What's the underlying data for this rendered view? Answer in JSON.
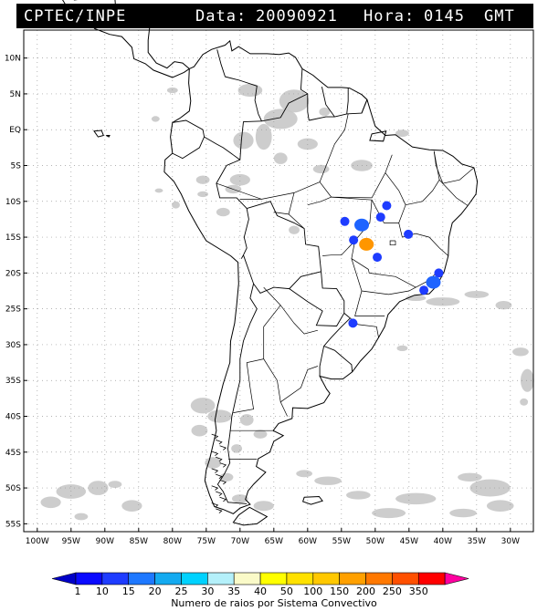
{
  "header": {
    "source": "CPTEC/INPE",
    "date_label": "Data:",
    "date_value": "20090921",
    "time_label": "Hora:",
    "time_value": "0145",
    "timezone": "GMT"
  },
  "map": {
    "lat_labels": [
      "10N",
      "5N",
      "EQ",
      "5S",
      "10S",
      "15S",
      "20S",
      "25S",
      "30S",
      "35S",
      "40S",
      "45S",
      "50S",
      "55S"
    ],
    "lon_labels": [
      "100W",
      "95W",
      "90W",
      "85W",
      "80W",
      "75W",
      "70W",
      "65W",
      "60W",
      "55W",
      "50W",
      "45W",
      "40W",
      "35W",
      "30W"
    ],
    "cloud_color": "#c8c8c8",
    "coast_color": "#000000",
    "grid_color": "#999999",
    "convective_systems": [
      {
        "lon": -54.5,
        "lat": -12.8,
        "color": "#1e3cff",
        "category": "1-10"
      },
      {
        "lon": -52.0,
        "lat": -13.3,
        "color": "#1e64ff",
        "category": "10-15"
      },
      {
        "lon": -49.2,
        "lat": -12.2,
        "color": "#1e3cff",
        "category": "1-10"
      },
      {
        "lon": -48.3,
        "lat": -10.6,
        "color": "#1e3cff",
        "category": "1-10"
      },
      {
        "lon": -53.2,
        "lat": -15.4,
        "color": "#1e3cff",
        "category": "1-10"
      },
      {
        "lon": -51.3,
        "lat": -16.0,
        "color": "#ff9600",
        "category": "150-200"
      },
      {
        "lon": -49.7,
        "lat": -17.8,
        "color": "#1e3cff",
        "category": "1-10"
      },
      {
        "lon": -45.1,
        "lat": -14.6,
        "color": "#1e3cff",
        "category": "1-10"
      },
      {
        "lon": -40.6,
        "lat": -20.0,
        "color": "#1e3cff",
        "category": "1-10"
      },
      {
        "lon": -41.4,
        "lat": -21.3,
        "color": "#1e64ff",
        "category": "10-15"
      },
      {
        "lon": -42.8,
        "lat": -22.4,
        "color": "#1e3cff",
        "category": "1-10"
      },
      {
        "lon": -53.3,
        "lat": -27.0,
        "color": "#1e3cff",
        "category": "1-10"
      }
    ]
  },
  "legend": {
    "title": "Numero de raios por Sistema Convectivo",
    "bins": [
      {
        "label": "1",
        "color": "#0a0aff"
      },
      {
        "label": "10",
        "color": "#1e3cff"
      },
      {
        "label": "15",
        "color": "#1e78ff"
      },
      {
        "label": "20",
        "color": "#14aaf0"
      },
      {
        "label": "25",
        "color": "#00d2ff"
      },
      {
        "label": "30",
        "color": "#b4f0fa"
      },
      {
        "label": "35",
        "color": "#fafac8"
      },
      {
        "label": "40",
        "color": "#ffff00"
      },
      {
        "label": "50",
        "color": "#ffe100"
      },
      {
        "label": "100",
        "color": "#ffc800"
      },
      {
        "label": "150",
        "color": "#ffa000"
      },
      {
        "label": "200",
        "color": "#ff7800"
      },
      {
        "label": "250",
        "color": "#ff5000"
      },
      {
        "label": "350",
        "color": "#ff0000"
      }
    ],
    "end_color": "#ff00a0",
    "start_color": "#0000c8"
  }
}
